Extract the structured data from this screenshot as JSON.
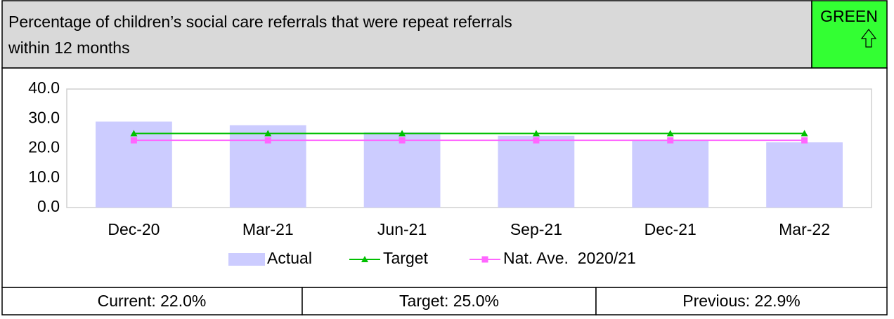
{
  "header": {
    "title": [
      "Percentage of children’s social care referrals that were repeat referrals",
      "within 12 months"
    ],
    "status": "GREEN"
  },
  "chart_data": {
    "type": "bar",
    "categories": [
      "Dec-20",
      "Mar-21",
      "Jun-21",
      "Sep-21",
      "Dec-21",
      "Mar-22"
    ],
    "series": [
      {
        "name": "Actual",
        "type": "bar",
        "color": "#ccccff",
        "values": [
          29.0,
          27.8,
          25.4,
          24.2,
          22.9,
          22.0
        ]
      },
      {
        "name": "Target",
        "type": "line",
        "marker": "triangle",
        "color": "#00c000",
        "values": [
          25.0,
          25.0,
          25.0,
          25.0,
          25.0,
          25.0
        ]
      },
      {
        "name": "Nat. Ave.  2020/21",
        "type": "line",
        "marker": "square",
        "color": "#ff66ff",
        "values": [
          22.7,
          22.7,
          22.7,
          22.7,
          22.7,
          22.7
        ]
      }
    ],
    "ylim": [
      0,
      40
    ],
    "yticks": [
      {
        "value": 0,
        "label": "0.0"
      },
      {
        "value": 10,
        "label": "10.0"
      },
      {
        "value": 20,
        "label": "20.0"
      },
      {
        "value": 30,
        "label": "30.0"
      },
      {
        "value": 40,
        "label": "40.0"
      }
    ],
    "grid": false,
    "legend": "bottom"
  },
  "footer": [
    "Current: 22.0%",
    "Target: 25.0%",
    "Previous: 22.9%"
  ]
}
